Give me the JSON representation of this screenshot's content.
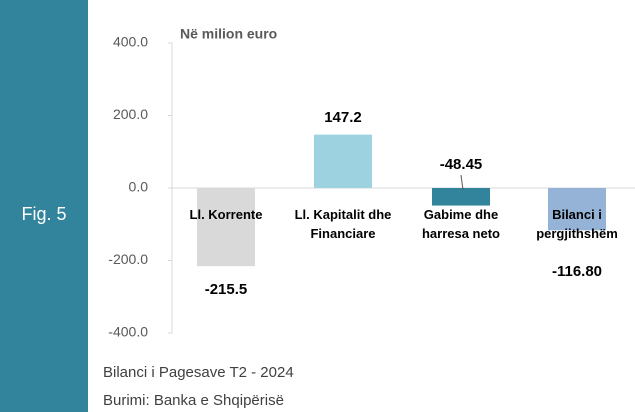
{
  "chart_data": {
    "type": "bar",
    "label": "Fig. 5",
    "unit": "Në milion euro",
    "categories": [
      "Ll. Korrente",
      "Ll. Kapitalit dhe Financiare",
      "Gabime dhe harresa neto",
      "Bilanci i pergjithshëm"
    ],
    "values": [
      -215.5,
      147.2,
      -48.45,
      -116.8
    ],
    "value_labels": [
      "-215.5",
      "147.2",
      "-48.45",
      "-116.80"
    ],
    "colors": [
      "#d9d9d9",
      "#9dd3e0",
      "#31849b",
      "#95b3d7"
    ],
    "ylim": [
      -400,
      400
    ],
    "yticks": [
      {
        "value": -400,
        "label": "-400.0"
      },
      {
        "value": -200,
        "label": "-200.0"
      },
      {
        "value": 0,
        "label": "0.0"
      },
      {
        "value": 200,
        "label": "200.0"
      },
      {
        "value": 400,
        "label": "400.0"
      }
    ],
    "footer": [
      "Bilanci i Pagesave T2 - 2024",
      "Burimi: Banka e Shqipërisë"
    ]
  }
}
